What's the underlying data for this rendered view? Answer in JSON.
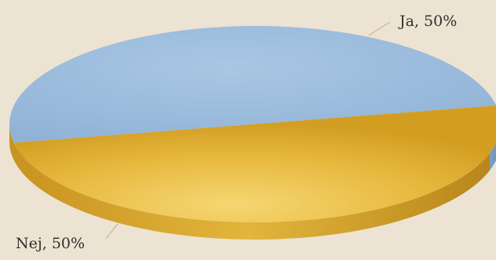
{
  "chart_data": {
    "type": "pie",
    "style": "3d-tilted",
    "title": "",
    "slices": [
      {
        "label": "Ja",
        "value": 50,
        "display": "Ja, 50%",
        "color": "#9dbedd"
      },
      {
        "label": "Nej",
        "value": 50,
        "display": "Nej, 50%",
        "color": "#e2b43a"
      }
    ],
    "legend": "none",
    "background": "#ede3d2"
  }
}
